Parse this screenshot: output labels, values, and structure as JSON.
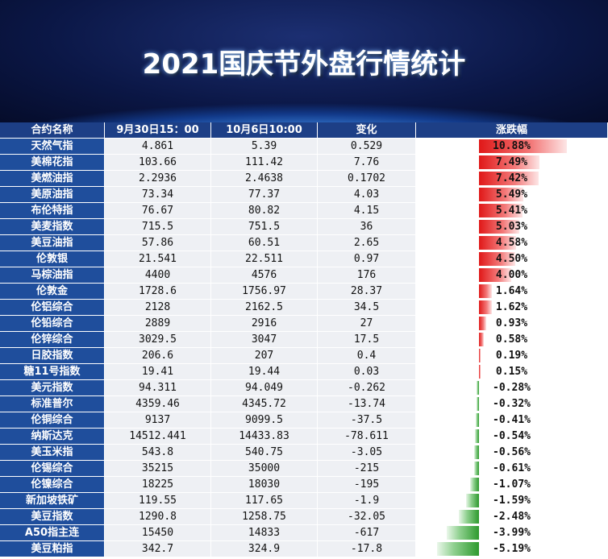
{
  "title": "2021国庆节外盘行情统计",
  "table": {
    "header": [
      "合约名称",
      "9月30日15：00",
      "10月6日10:00",
      "变化",
      "涨跌幅"
    ],
    "rows": [
      [
        "天然气指",
        "4.861",
        "5.39",
        "0.529",
        {
          "value": 10.88,
          "label": "10.88%"
        }
      ],
      [
        "美棉花指",
        "103.66",
        "111.42",
        "7.76",
        {
          "value": 7.49,
          "label": "7.49%"
        }
      ],
      [
        "美燃油指",
        "2.2936",
        "2.4638",
        "0.1702",
        {
          "value": 7.42,
          "label": "7.42%"
        }
      ],
      [
        "美原油指",
        "73.34",
        "77.37",
        "4.03",
        {
          "value": 5.49,
          "label": "5.49%"
        }
      ],
      [
        "布伦特指",
        "76.67",
        "80.82",
        "4.15",
        {
          "value": 5.41,
          "label": "5.41%"
        }
      ],
      [
        "美麦指数",
        "715.5",
        "751.5",
        "36",
        {
          "value": 5.03,
          "label": "5.03%"
        }
      ],
      [
        "美豆油指",
        "57.86",
        "60.51",
        "2.65",
        {
          "value": 4.58,
          "label": "4.58%"
        }
      ],
      [
        "伦敦银",
        "21.541",
        "22.511",
        "0.97",
        {
          "value": 4.5,
          "label": "4.50%"
        }
      ],
      [
        "马棕油指",
        "4400",
        "4576",
        "176",
        {
          "value": 4.0,
          "label": "4.00%"
        }
      ],
      [
        "伦敦金",
        "1728.6",
        "1756.97",
        "28.37",
        {
          "value": 1.64,
          "label": "1.64%"
        }
      ],
      [
        "伦铝综合",
        "2128",
        "2162.5",
        "34.5",
        {
          "value": 1.62,
          "label": "1.62%"
        }
      ],
      [
        "伦铅综合",
        "2889",
        "2916",
        "27",
        {
          "value": 0.93,
          "label": "0.93%"
        }
      ],
      [
        "伦锌综合",
        "3029.5",
        "3047",
        "17.5",
        {
          "value": 0.58,
          "label": "0.58%"
        }
      ],
      [
        "日胶指数",
        "206.6",
        "207",
        "0.4",
        {
          "value": 0.19,
          "label": "0.19%"
        }
      ],
      [
        "糖11号指数",
        "19.41",
        "19.44",
        "0.03",
        {
          "value": 0.15,
          "label": "0.15%"
        }
      ],
      [
        "美元指数",
        "94.311",
        "94.049",
        "-0.262",
        {
          "value": -0.28,
          "label": "-0.28%"
        }
      ],
      [
        "标准普尔",
        "4359.46",
        "4345.72",
        "-13.74",
        {
          "value": -0.32,
          "label": "-0.32%"
        }
      ],
      [
        "伦铜综合",
        "9137",
        "9099.5",
        "-37.5",
        {
          "value": -0.41,
          "label": "-0.41%"
        }
      ],
      [
        "纳斯达克",
        "14512.441",
        "14433.83",
        "-78.611",
        {
          "value": -0.54,
          "label": "-0.54%"
        }
      ],
      [
        "美玉米指",
        "543.8",
        "540.75",
        "-3.05",
        {
          "value": -0.56,
          "label": "-0.56%"
        }
      ],
      [
        "伦锡综合",
        "35215",
        "35000",
        "-215",
        {
          "value": -0.61,
          "label": "-0.61%"
        }
      ],
      [
        "伦镍综合",
        "18225",
        "18030",
        "-195",
        {
          "value": -1.07,
          "label": "-1.07%"
        }
      ],
      [
        "新加坡铁矿",
        "119.55",
        "117.65",
        "-1.9",
        {
          "value": -1.59,
          "label": "-1.59%"
        }
      ],
      [
        "美豆指数",
        "1290.8",
        "1258.75",
        "-32.05",
        {
          "value": -2.48,
          "label": "-2.48%"
        }
      ],
      [
        "A50指主连",
        "15450",
        "14833",
        "-617",
        {
          "value": -3.99,
          "label": "-3.99%"
        }
      ],
      [
        "美豆粕指",
        "342.7",
        "324.9",
        "-17.8",
        {
          "value": -5.19,
          "label": "-5.19%"
        }
      ]
    ]
  }
}
